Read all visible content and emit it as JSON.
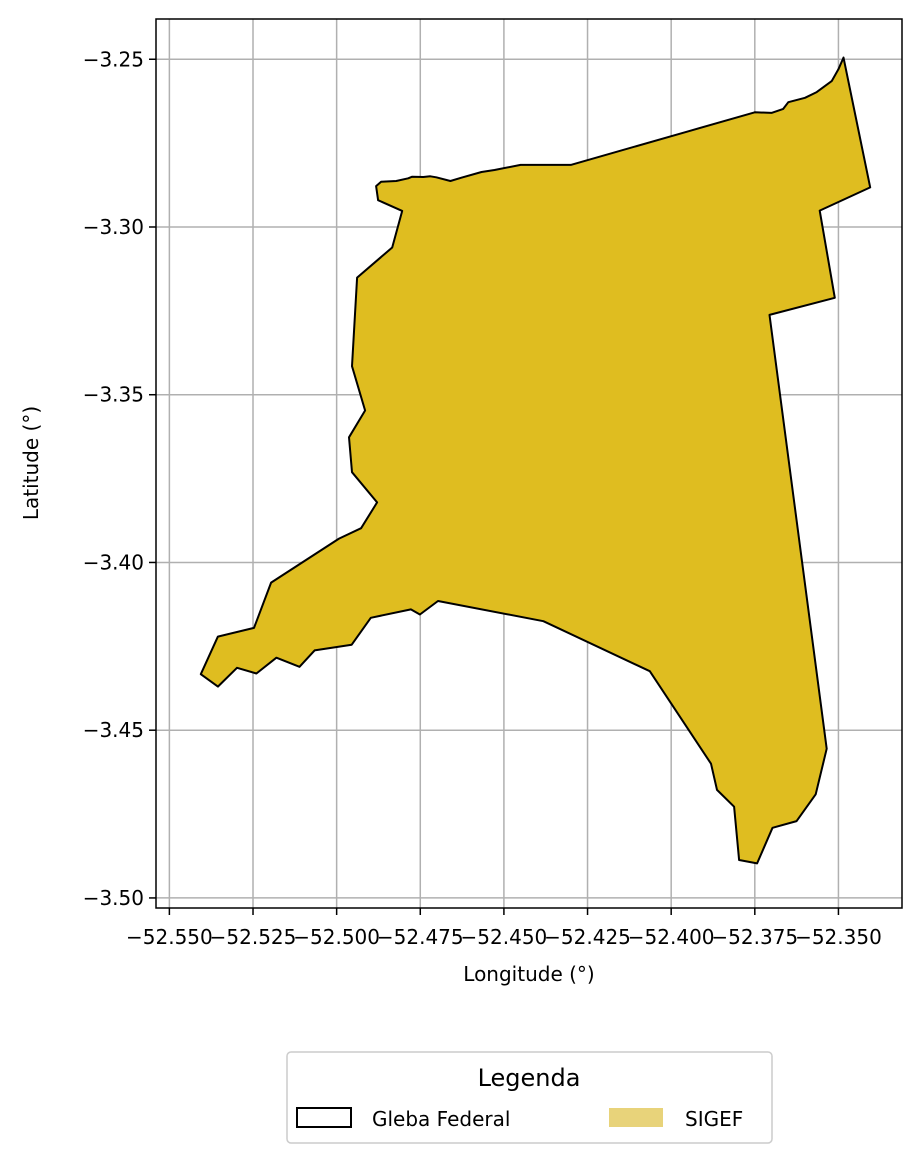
{
  "chart_data": {
    "type": "map",
    "xlabel": "Longitude (°)",
    "ylabel": "Latitude (°)",
    "xlim": [
      -52.554,
      -52.331
    ],
    "ylim": [
      -3.503,
      -3.238
    ],
    "grid": true,
    "x_ticks": [
      -52.55,
      -52.525,
      -52.5,
      -52.475,
      -52.45,
      -52.425,
      -52.4,
      -52.375,
      -52.35
    ],
    "x_tick_labels": [
      "−52.550",
      "−52.525",
      "−52.500",
      "−52.475",
      "−52.450",
      "−52.425",
      "−52.400",
      "−52.375",
      "−52.350"
    ],
    "y_ticks": [
      -3.25,
      -3.3,
      -3.35,
      -3.4,
      -3.45,
      -3.5
    ],
    "y_tick_labels": [
      "−3.25",
      "−3.30",
      "−3.35",
      "−3.40",
      "−3.45",
      "−3.50"
    ],
    "legend": {
      "title": "Legenda",
      "placement": "bottom-center",
      "entries": [
        {
          "label": "Gleba Federal",
          "fill": "none",
          "edge": "#000000"
        },
        {
          "label": "SIGEF",
          "fill": "#e8d37a",
          "edge": "none"
        }
      ]
    },
    "colors": {
      "polygon_fill": "#dfbd20",
      "polygon_edge": "#000000",
      "grid": "#b0b0b0"
    },
    "polygon": [
      [
        -52.3485,
        -3.2495
      ],
      [
        -52.3405,
        -3.2882
      ],
      [
        -52.3556,
        -3.2951
      ],
      [
        -52.3511,
        -3.3211
      ],
      [
        -52.3706,
        -3.3262
      ],
      [
        -52.3535,
        -3.4555
      ],
      [
        -52.3568,
        -3.4691
      ],
      [
        -52.3625,
        -3.4771
      ],
      [
        -52.3697,
        -3.4791
      ],
      [
        -52.3743,
        -3.4897
      ],
      [
        -52.3797,
        -3.4887
      ],
      [
        -52.3812,
        -3.4728
      ],
      [
        -52.3863,
        -3.4678
      ],
      [
        -52.3881,
        -3.46
      ],
      [
        -52.4064,
        -3.4324
      ],
      [
        -52.4382,
        -3.4175
      ],
      [
        -52.4697,
        -3.4115
      ],
      [
        -52.4751,
        -3.4155
      ],
      [
        -52.4778,
        -3.414
      ],
      [
        -52.4898,
        -3.4165
      ],
      [
        -52.4955,
        -3.4245
      ],
      [
        -52.5066,
        -3.4262
      ],
      [
        -52.5111,
        -3.4311
      ],
      [
        -52.518,
        -3.4284
      ],
      [
        -52.524,
        -3.4331
      ],
      [
        -52.5298,
        -3.4314
      ],
      [
        -52.5355,
        -3.437
      ],
      [
        -52.5406,
        -3.4333
      ],
      [
        -52.5355,
        -3.4221
      ],
      [
        -52.5247,
        -3.4195
      ],
      [
        -52.5196,
        -3.406
      ],
      [
        -52.4993,
        -3.3929
      ],
      [
        -52.4927,
        -3.3898
      ],
      [
        -52.4879,
        -3.3821
      ],
      [
        -52.4954,
        -3.3731
      ],
      [
        -52.4963,
        -3.3627
      ],
      [
        -52.4915,
        -3.3547
      ],
      [
        -52.4954,
        -3.3415
      ],
      [
        -52.4939,
        -3.3151
      ],
      [
        -52.4834,
        -3.3061
      ],
      [
        -52.4804,
        -3.2952
      ],
      [
        -52.4876,
        -3.292
      ],
      [
        -52.4882,
        -3.2878
      ],
      [
        -52.4867,
        -3.2865
      ],
      [
        -52.4822,
        -3.2863
      ],
      [
        -52.4786,
        -3.2855
      ],
      [
        -52.4774,
        -3.285
      ],
      [
        -52.4741,
        -3.2851
      ],
      [
        -52.472,
        -3.2849
      ],
      [
        -52.4702,
        -3.2852
      ],
      [
        -52.466,
        -3.2863
      ],
      [
        -52.4627,
        -3.2853
      ],
      [
        -52.4567,
        -3.2836
      ],
      [
        -52.4528,
        -3.283
      ],
      [
        -52.445,
        -3.2815
      ],
      [
        -52.43,
        -3.2815
      ],
      [
        -52.395,
        -3.2715
      ],
      [
        -52.375,
        -3.2658
      ],
      [
        -52.37,
        -3.266
      ],
      [
        -52.3665,
        -3.2648
      ],
      [
        -52.365,
        -3.2628
      ],
      [
        -52.36,
        -3.2615
      ],
      [
        -52.3565,
        -3.2598
      ],
      [
        -52.352,
        -3.2565
      ],
      [
        -52.35,
        -3.253
      ]
    ]
  }
}
